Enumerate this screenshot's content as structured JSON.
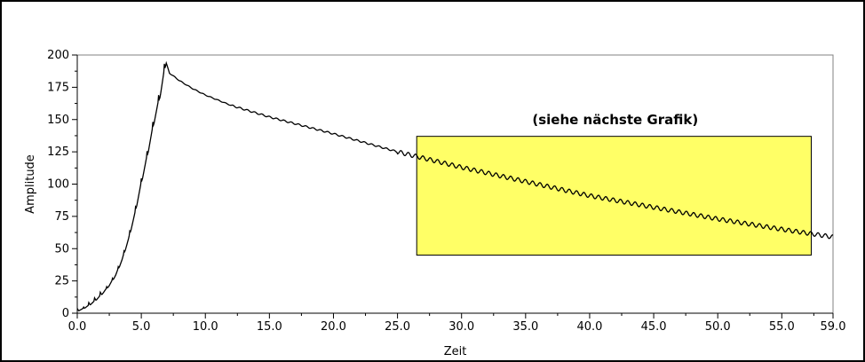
{
  "chart_data": {
    "type": "line",
    "title": "",
    "xlabel": "Zeit",
    "ylabel": "Amplitude",
    "xlim": [
      0,
      59
    ],
    "ylim": [
      0,
      200
    ],
    "grid": false,
    "legend": "none",
    "x_ticks": [
      "0.0",
      "5.0",
      "10.0",
      "15.0",
      "20.0",
      "25.0",
      "30.0",
      "35.0",
      "40.0",
      "45.0",
      "50.0",
      "55.0",
      "59.0"
    ],
    "x_tick_values": [
      0,
      5,
      10,
      15,
      20,
      25,
      30,
      35,
      40,
      45,
      50,
      55,
      59
    ],
    "y_ticks": [
      "0",
      "25",
      "50",
      "75",
      "100",
      "125",
      "150",
      "175",
      "200"
    ],
    "y_tick_values": [
      0,
      25,
      50,
      75,
      100,
      125,
      150,
      175,
      200
    ],
    "series": [
      {
        "x": [
          0,
          0.5,
          1.0,
          1.5,
          2.0,
          2.5,
          3.0,
          3.5,
          4.0,
          4.5,
          5.0,
          5.5,
          6.0,
          6.5,
          6.9,
          7.2,
          8.0,
          9.0,
          10.0,
          12.0,
          15.0,
          20.0,
          25.0,
          30.0,
          35.0,
          40.0,
          45.0,
          50.0,
          55.0,
          59.0
        ],
        "y": [
          2,
          4,
          7,
          11,
          16,
          22,
          30,
          42,
          58,
          78,
          102,
          125,
          150,
          172,
          195,
          186,
          180,
          174,
          169,
          161,
          152,
          139,
          125,
          113,
          102,
          91,
          82,
          73,
          65,
          59
        ]
      }
    ],
    "highlight_box": {
      "x_range": [
        26.5,
        57.3
      ],
      "y_range": [
        45,
        137
      ],
      "color": "#ffff66"
    },
    "annotation": {
      "text": "(siehe nächste Grafik)",
      "x": 42,
      "y": 150
    },
    "colors": {
      "line": "#000000",
      "box_fill": "#ffff66",
      "box_stroke": "#000000"
    }
  }
}
